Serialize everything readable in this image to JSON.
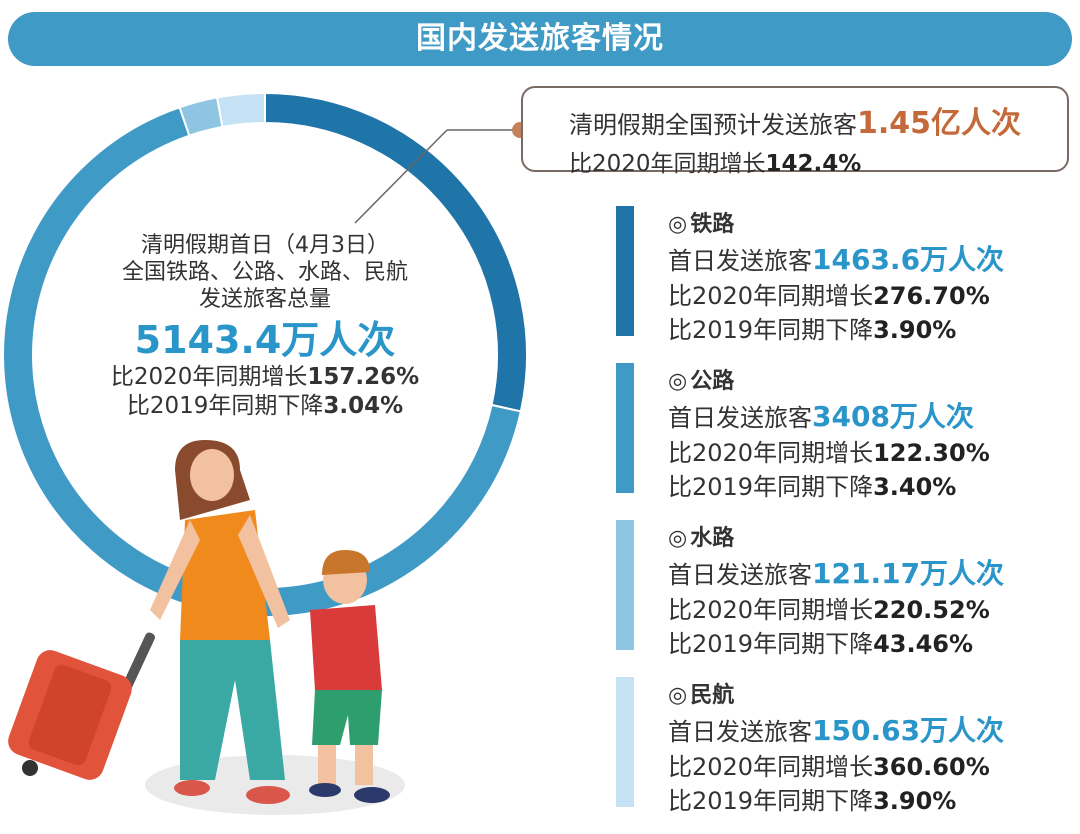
{
  "header": {
    "title": "国内发送旅客情况"
  },
  "callout": {
    "prefix": "清明假期全国预计发送旅客",
    "value": "1.45亿人次",
    "growth_prefix": "比2020年同期增长",
    "growth_value": "142.4%"
  },
  "center": {
    "line1": "清明假期首日（4月3日）",
    "line2": "全国铁路、公路、水路、民航",
    "line3": "发送旅客总量",
    "total": "5143.4万人次",
    "cmp2020_prefix": "比2020年同期增长",
    "cmp2020_value": "157.26%",
    "cmp2019_prefix": "比2019年同期下降",
    "cmp2019_value": "3.04%"
  },
  "colors": {
    "banner": "#3f9ac6",
    "railway": "#1f74a8",
    "highway": "#3f9ac6",
    "waterway": "#8ec5e3",
    "aviation": "#c4e2f3",
    "callout_value": "#c46a3a"
  },
  "modes": [
    {
      "name": "铁路",
      "marker": "◎",
      "first_day_prefix": "首日发送旅客",
      "first_day_value": "1463.6万人次",
      "cmp2020_prefix": "比2020年同期增长",
      "cmp2020_value": "276.70%",
      "cmp2019_prefix": "比2019年同期下降",
      "cmp2019_value": "3.90%",
      "color": "#1f74a8"
    },
    {
      "name": "公路",
      "marker": "◎",
      "first_day_prefix": "首日发送旅客",
      "first_day_value": "3408万人次",
      "cmp2020_prefix": "比2020年同期增长",
      "cmp2020_value": "122.30%",
      "cmp2019_prefix": "比2019年同期下降",
      "cmp2019_value": "3.40%",
      "color": "#3f9ac6"
    },
    {
      "name": "水路",
      "marker": "◎",
      "first_day_prefix": "首日发送旅客",
      "first_day_value": "121.17万人次",
      "cmp2020_prefix": "比2020年同期增长",
      "cmp2020_value": "220.52%",
      "cmp2019_prefix": "比2019年同期下降",
      "cmp2019_value": "43.46%",
      "color": "#8ec5e3"
    },
    {
      "name": "民航",
      "marker": "◎",
      "first_day_prefix": "首日发送旅客",
      "first_day_value": "150.63万人次",
      "cmp2020_prefix": "比2020年同期增长",
      "cmp2020_value": "360.60%",
      "cmp2019_prefix": "比2019年同期下降",
      "cmp2019_value": "3.90%",
      "color": "#c4e2f3"
    }
  ],
  "chart_data": {
    "type": "pie",
    "categories": [
      "铁路",
      "公路",
      "水路",
      "民航"
    ],
    "values": [
      1463.6,
      3408,
      121.17,
      150.63
    ],
    "unit": "万人次",
    "colors": [
      "#1f74a8",
      "#3f9ac6",
      "#8ec5e3",
      "#c4e2f3"
    ]
  }
}
